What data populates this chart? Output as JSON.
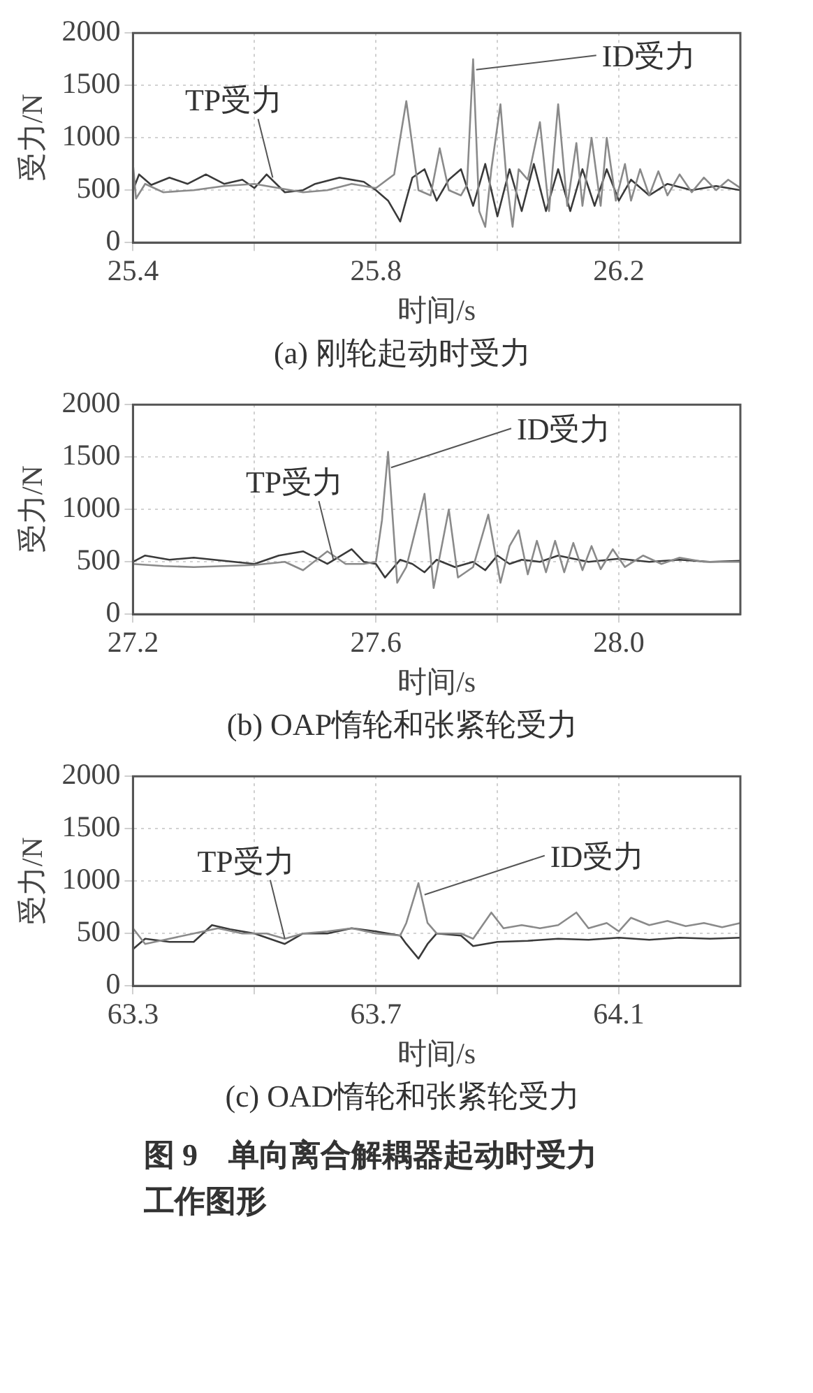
{
  "chart_data": [
    {
      "type": "line",
      "title": "(a) 刚轮起动时受力",
      "xlabel": "时间/s",
      "ylabel": "受力/N",
      "xlim": [
        25.4,
        26.4
      ],
      "xticks": [
        25.4,
        {
          "value": 25.6,
          "label": null
        },
        25.8,
        {
          "value": 26.0,
          "label": null
        },
        26.2
      ],
      "ylim": [
        0,
        2000
      ],
      "yticks": [
        0,
        500,
        1000,
        1500,
        2000
      ],
      "grid": true,
      "annotations": [
        {
          "text": "TP受力",
          "x": 25.63,
          "y": 620
        },
        {
          "text": "ID受力",
          "x": 25.965,
          "y": 1650
        }
      ],
      "series": [
        {
          "color": "#8a8a8a",
          "x": [
            25.4,
            25.405,
            25.42,
            25.45,
            25.5,
            25.55,
            25.6,
            25.64,
            25.68,
            25.72,
            25.76,
            25.8,
            25.83,
            25.85,
            25.87,
            25.89,
            25.905,
            25.92,
            25.94,
            25.95,
            25.96,
            25.97,
            25.98,
            25.99,
            26.005,
            26.015,
            26.025,
            26.035,
            26.05,
            26.07,
            26.085,
            26.1,
            26.115,
            26.13,
            26.14,
            26.155,
            26.17,
            26.18,
            26.195,
            26.21,
            26.22,
            26.235,
            26.25,
            26.265,
            26.28,
            26.3,
            26.32,
            26.34,
            26.36,
            26.38,
            26.4
          ],
          "values": [
            750,
            420,
            560,
            480,
            500,
            540,
            560,
            520,
            480,
            500,
            560,
            520,
            650,
            1350,
            500,
            450,
            900,
            500,
            450,
            550,
            1750,
            300,
            150,
            700,
            1320,
            600,
            150,
            700,
            600,
            1150,
            300,
            1320,
            350,
            950,
            350,
            1000,
            350,
            1000,
            400,
            750,
            400,
            700,
            450,
            680,
            450,
            650,
            480,
            620,
            500,
            600,
            520
          ]
        },
        {
          "color": "#3a3a3a",
          "x": [
            25.4,
            25.41,
            25.43,
            25.46,
            25.49,
            25.52,
            25.55,
            25.58,
            25.6,
            25.62,
            25.65,
            25.68,
            25.7,
            25.74,
            25.78,
            25.8,
            25.82,
            25.84,
            25.86,
            25.88,
            25.9,
            25.92,
            25.94,
            25.96,
            25.98,
            26.0,
            26.02,
            26.04,
            26.06,
            26.08,
            26.1,
            26.12,
            26.14,
            26.16,
            26.18,
            26.2,
            26.22,
            26.25,
            26.28,
            26.32,
            26.36,
            26.4
          ],
          "values": [
            500,
            650,
            550,
            620,
            560,
            650,
            560,
            600,
            520,
            650,
            480,
            500,
            560,
            620,
            580,
            500,
            400,
            200,
            620,
            700,
            400,
            600,
            700,
            350,
            750,
            250,
            700,
            300,
            750,
            300,
            700,
            300,
            700,
            350,
            700,
            400,
            600,
            450,
            560,
            500,
            540,
            500
          ]
        }
      ]
    },
    {
      "type": "line",
      "title": "(b) OAP惰轮和张紧轮受力",
      "xlabel": "时间/s",
      "ylabel": "受力/N",
      "xlim": [
        27.2,
        28.2
      ],
      "xticks": [
        27.2,
        {
          "value": 27.4,
          "label": null
        },
        27.6,
        {
          "value": 27.8,
          "label": null
        },
        {
          "value": 28.0,
          "label": "28.0"
        }
      ],
      "ylim": [
        0,
        2000
      ],
      "yticks": [
        0,
        500,
        1000,
        1500,
        2000
      ],
      "grid": true,
      "annotations": [
        {
          "text": "TP受力",
          "x": 27.53,
          "y": 520
        },
        {
          "text": "ID受力",
          "x": 27.625,
          "y": 1400
        }
      ],
      "series": [
        {
          "color": "#8a8a8a",
          "x": [
            27.2,
            27.25,
            27.3,
            27.35,
            27.4,
            27.45,
            27.48,
            27.52,
            27.55,
            27.58,
            27.6,
            27.61,
            27.62,
            27.635,
            27.65,
            27.68,
            27.695,
            27.72,
            27.735,
            27.76,
            27.785,
            27.805,
            27.82,
            27.835,
            27.85,
            27.865,
            27.88,
            27.895,
            27.91,
            27.925,
            27.94,
            27.955,
            27.97,
            27.99,
            28.01,
            28.04,
            28.07,
            28.1,
            28.14,
            28.2
          ],
          "values": [
            480,
            460,
            450,
            460,
            470,
            500,
            420,
            600,
            480,
            480,
            500,
            900,
            1550,
            300,
            450,
            1150,
            250,
            1000,
            350,
            450,
            950,
            300,
            650,
            800,
            380,
            700,
            400,
            700,
            400,
            680,
            420,
            650,
            430,
            620,
            450,
            560,
            480,
            540,
            500,
            500
          ]
        },
        {
          "color": "#3a3a3a",
          "x": [
            27.2,
            27.22,
            27.26,
            27.3,
            27.35,
            27.4,
            27.44,
            27.48,
            27.52,
            27.56,
            27.58,
            27.6,
            27.615,
            27.64,
            27.66,
            27.68,
            27.7,
            27.73,
            27.76,
            27.78,
            27.8,
            27.82,
            27.84,
            27.87,
            27.9,
            27.95,
            28.0,
            28.05,
            28.1,
            28.15,
            28.2
          ],
          "values": [
            500,
            560,
            520,
            540,
            510,
            480,
            560,
            600,
            480,
            620,
            500,
            480,
            350,
            520,
            480,
            400,
            520,
            450,
            500,
            420,
            560,
            480,
            520,
            500,
            560,
            500,
            530,
            500,
            520,
            500,
            510
          ]
        }
      ]
    },
    {
      "type": "line",
      "title": "(c) OAD惰轮和张紧轮受力",
      "xlabel": "时间/s",
      "ylabel": "受力/N",
      "xlim": [
        63.3,
        64.3
      ],
      "xticks": [
        63.3,
        {
          "value": 63.5,
          "label": null
        },
        63.7,
        {
          "value": 63.9,
          "label": null
        },
        64.1
      ],
      "ylim": [
        0,
        2000
      ],
      "yticks": [
        0,
        500,
        1000,
        1500,
        2000
      ],
      "grid": true,
      "annotations": [
        {
          "text": "TP受力",
          "x": 63.55,
          "y": 450
        },
        {
          "text": "ID受力",
          "x": 63.78,
          "y": 870
        },
        "图 9　单向离合解耦器起动时受力工作图形"
      ],
      "series": [
        {
          "color": "#8a8a8a",
          "x": [
            63.3,
            63.32,
            63.36,
            63.4,
            63.44,
            63.48,
            63.52,
            63.55,
            63.58,
            63.62,
            63.66,
            63.7,
            63.74,
            63.75,
            63.77,
            63.785,
            63.8,
            63.84,
            63.86,
            63.89,
            63.91,
            63.94,
            63.97,
            64.0,
            64.03,
            64.05,
            64.08,
            64.1,
            64.12,
            64.15,
            64.18,
            64.21,
            64.24,
            64.27,
            64.3
          ],
          "values": [
            550,
            400,
            450,
            500,
            550,
            500,
            500,
            450,
            500,
            520,
            550,
            500,
            480,
            600,
            980,
            600,
            500,
            500,
            450,
            700,
            550,
            580,
            550,
            580,
            700,
            550,
            600,
            520,
            650,
            580,
            620,
            570,
            600,
            560,
            600
          ]
        },
        {
          "color": "#3a3a3a",
          "x": [
            63.3,
            63.32,
            63.36,
            63.4,
            63.43,
            63.46,
            63.5,
            63.55,
            63.58,
            63.62,
            63.66,
            63.7,
            63.74,
            63.75,
            63.77,
            63.785,
            63.8,
            63.84,
            63.86,
            63.9,
            63.95,
            64.0,
            64.05,
            64.1,
            64.15,
            64.2,
            64.25,
            64.3
          ],
          "values": [
            350,
            450,
            420,
            420,
            580,
            540,
            500,
            400,
            500,
            500,
            550,
            520,
            480,
            400,
            260,
            400,
            500,
            480,
            380,
            420,
            430,
            450,
            440,
            460,
            440,
            460,
            450,
            460
          ]
        }
      ]
    }
  ]
}
